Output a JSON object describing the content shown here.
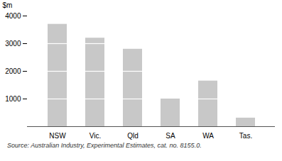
{
  "chart_data": {
    "type": "bar",
    "ylabel": "$m",
    "source": "Source: Australian Industry, Experimental Estimates, cat. no. 8155.0.",
    "categories": [
      "NSW",
      "Vic.",
      "Qld",
      "SA",
      "WA",
      "Tas."
    ],
    "values": [
      3700,
      3200,
      2800,
      1000,
      1650,
      310
    ],
    "color": "#c8c8c8",
    "ylim": [
      0,
      4000
    ],
    "yticks": [
      1000,
      2000,
      3000,
      4000
    ],
    "grid": false
  }
}
